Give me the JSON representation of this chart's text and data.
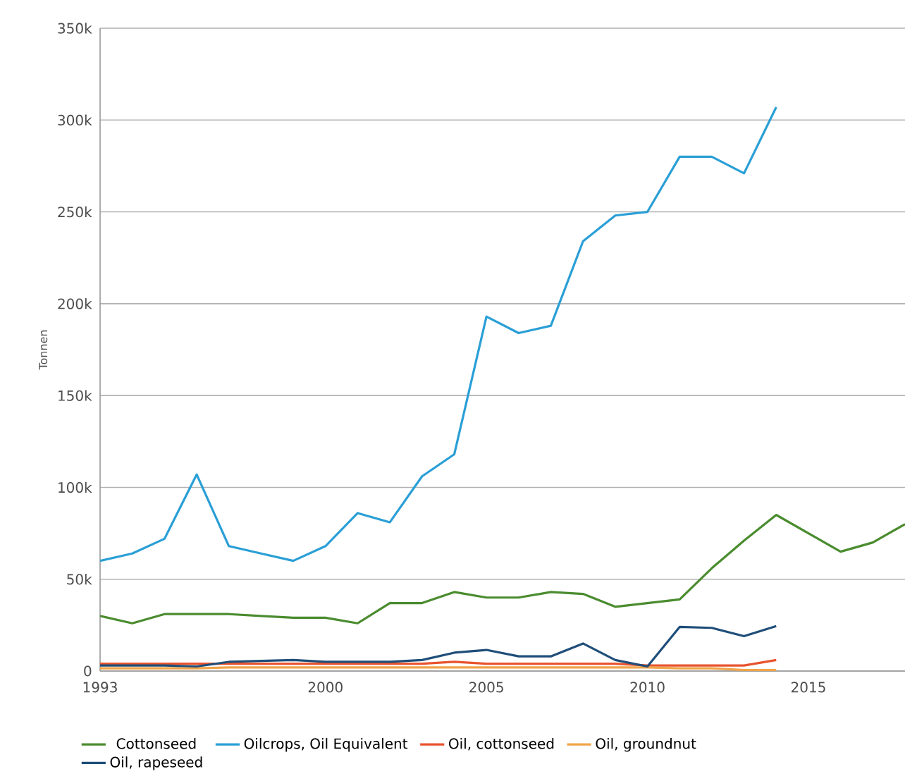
{
  "chart_data": {
    "type": "line",
    "ylabel": "Tonnen",
    "x": [
      1993,
      1994,
      1995,
      1996,
      1997,
      1998,
      1999,
      2000,
      2001,
      2002,
      2003,
      2004,
      2005,
      2006,
      2007,
      2008,
      2009,
      2010,
      2011,
      2012,
      2013,
      2014
    ],
    "series": [
      {
        "name": "Cottonseed",
        "color": "#4a8c2f",
        "x": [
          1993,
          1994,
          1995,
          1996,
          1997,
          1998,
          1999,
          2000,
          2001,
          2002,
          2003,
          2004,
          2005,
          2006,
          2007,
          2008,
          2009,
          2010,
          2011,
          2012,
          2013,
          2014,
          2016,
          2017,
          2018
        ],
        "values": [
          30000,
          26000,
          31000,
          31000,
          31000,
          30000,
          29000,
          29000,
          26000,
          37000,
          37000,
          43000,
          40000,
          40000,
          43000,
          42000,
          35000,
          37000,
          39000,
          56000,
          71000,
          85000,
          65000,
          70000,
          80000
        ]
      },
      {
        "name": "Oilcrops, Oil Equivalent",
        "color": "#2a9fd6",
        "values": [
          60000,
          64000,
          72000,
          107000,
          68000,
          64000,
          60000,
          68000,
          86000,
          81000,
          106000,
          118000,
          193000,
          184000,
          188000,
          234000,
          248000,
          250000,
          280000,
          280000,
          271000,
          307000
        ]
      },
      {
        "name": "Oil, cottonseed",
        "color": "#e8542e",
        "values": [
          4000,
          4000,
          4000,
          4000,
          4000,
          4000,
          4000,
          4000,
          4000,
          4000,
          4000,
          5000,
          4000,
          4000,
          4000,
          4000,
          4000,
          3000,
          3000,
          3000,
          3000,
          6000
        ]
      },
      {
        "name": "Oil, groundnut",
        "color": "#f0a44a",
        "values": [
          1500,
          1500,
          1500,
          1500,
          2000,
          2000,
          2000,
          2000,
          2000,
          2000,
          2000,
          2000,
          2000,
          2000,
          2000,
          2000,
          2000,
          2000,
          1500,
          1500,
          500,
          500
        ]
      },
      {
        "name": "Oil, rapeseed",
        "color": "#1f4e79",
        "values": [
          3000,
          3000,
          3000,
          2500,
          5000,
          5500,
          6000,
          5000,
          5000,
          5000,
          6000,
          10000,
          11500,
          8000,
          8000,
          15000,
          6000,
          2500,
          24000,
          23500,
          19000,
          24500
        ]
      }
    ],
    "xlim": [
      1993,
      2018
    ],
    "ylim": [
      0,
      350000
    ],
    "xticks": [
      1993,
      2000,
      2005,
      2010,
      2015
    ],
    "yticks": [
      0,
      {
        "value": 50000,
        "label": "50k"
      },
      {
        "value": 100000,
        "label": "100k"
      },
      {
        "value": 150000,
        "label": "150k"
      },
      {
        "value": 200000,
        "label": "200k"
      },
      {
        "value": 250000,
        "label": "250k"
      },
      {
        "value": 300000,
        "label": "300k"
      },
      {
        "value": 350000,
        "label": "350k"
      }
    ],
    "grid": "y",
    "legend": "bottom"
  }
}
